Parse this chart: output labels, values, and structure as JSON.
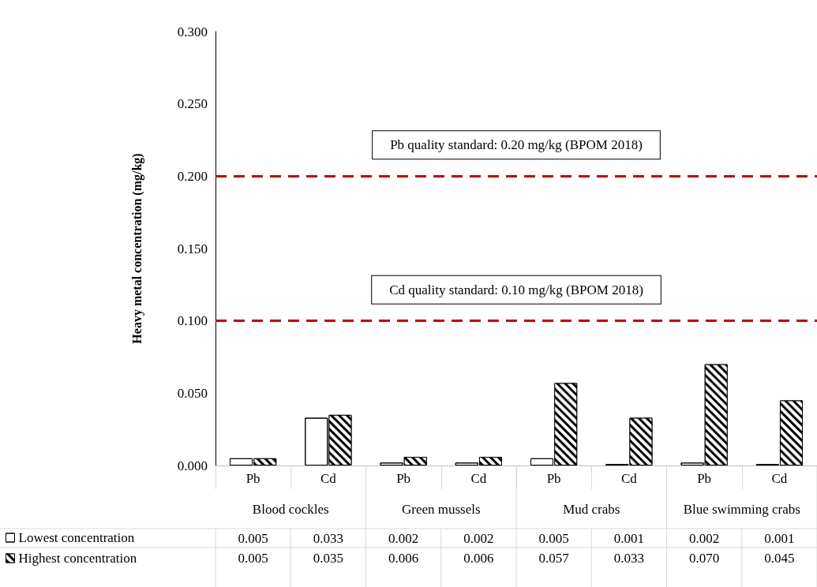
{
  "chart_data": {
    "type": "bar",
    "ylabel": "Heavy metal concentration (mg/kg)",
    "categories": [
      "Pb",
      "Cd",
      "Pb",
      "Cd",
      "Pb",
      "Cd",
      "Pb",
      "Cd"
    ],
    "annotations": [
      "Blood cockles",
      "Green mussels",
      "Mud crabs",
      "Blue swimming crabs"
    ],
    "series": [
      {
        "name": "Lowest concentration",
        "color": "#ffffff",
        "values": [
          0.005,
          0.033,
          0.002,
          0.002,
          0.005,
          0.001,
          0.002,
          0.001
        ],
        "value_labels": [
          "0.005",
          "0.033",
          "0.002",
          "0.002",
          "0.005",
          "0.001",
          "0.002",
          "0.001"
        ]
      },
      {
        "name": "Highest concentration",
        "color": "#000000",
        "values": [
          0.005,
          0.035,
          0.006,
          0.006,
          0.057,
          0.033,
          0.07,
          0.045
        ],
        "value_labels": [
          "0.005",
          "0.035",
          "0.006",
          "0.006",
          "0.057",
          "0.033",
          "0.070",
          "0.045"
        ]
      }
    ],
    "ylim": [
      0,
      0.3
    ],
    "yticks": [
      {
        "value": 0,
        "label": "0.000"
      },
      {
        "value": 0.05,
        "label": "0.050"
      },
      {
        "value": 0.1,
        "label": "0.100"
      },
      {
        "value": 0.15,
        "label": "0.150"
      },
      {
        "value": 0.2,
        "label": "0.200"
      },
      {
        "value": 0.25,
        "label": "0.250"
      },
      {
        "value": 0.3,
        "label": "0.300"
      }
    ],
    "ref_lines": [
      {
        "axis": "y",
        "value": 0.2,
        "label": "Pb quality standard: 0.20 mg/kg (BPOM 2018)",
        "color": "#c00000",
        "line_style": "dashed"
      },
      {
        "axis": "y",
        "value": 0.1,
        "label": "Cd quality standard: 0.10 mg/kg (BPOM 2018)",
        "color": "#c00000",
        "line_style": "dashed"
      }
    ],
    "grid": false,
    "legend": "bottom left"
  }
}
